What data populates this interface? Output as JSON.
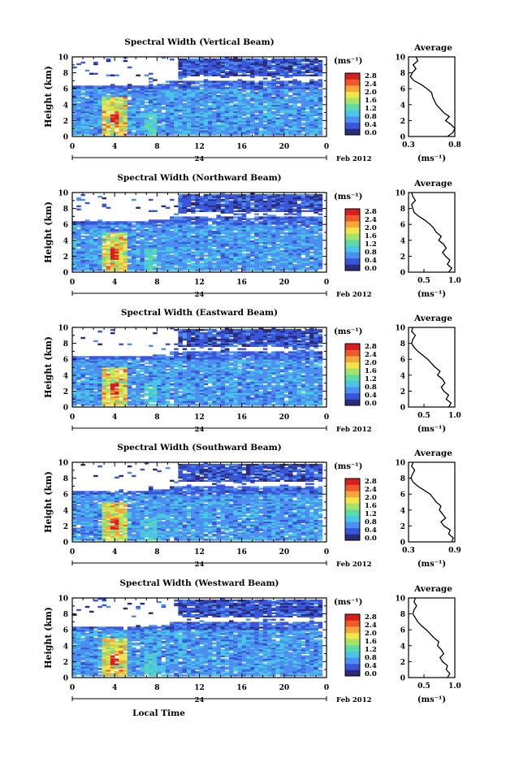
{
  "common": {
    "ylabel": "Height (km)",
    "unit_label": "(ms⁻¹)",
    "date_label": "Feb 2012",
    "day_label": "24",
    "xlabel": "Local Time",
    "avg_title": "Average",
    "avg_xlabel": "(ms⁻¹)",
    "x_ticks": [
      "0",
      "4",
      "8",
      "12",
      "16",
      "20",
      "0"
    ],
    "y_ticks": [
      "0",
      "2",
      "4",
      "6",
      "8",
      "10"
    ],
    "colorbar_ticks": [
      "0.0",
      "0.4",
      "0.8",
      "1.2",
      "1.6",
      "2.0",
      "2.4",
      "2.8"
    ],
    "colormap": [
      "#2b2b7a",
      "#3a56d8",
      "#4d8ff0",
      "#49c6e6",
      "#5ed9a8",
      "#a6e36a",
      "#f0e54a",
      "#f5a83a",
      "#ee5a2a",
      "#d62020"
    ]
  },
  "chart_data": [
    {
      "type": "heatmap",
      "title": "Spectral Width (Vertical Beam)",
      "xlabel": "",
      "ylabel": "Height (km)",
      "xlim": [
        0,
        24
      ],
      "ylim": [
        0,
        10
      ],
      "colorbar": {
        "label": "(ms⁻¹)",
        "range": [
          0.0,
          2.8
        ]
      },
      "top_km_noon": 9.7,
      "avg": {
        "title": "Average",
        "xlabel": "(ms⁻¹)",
        "xticks": [
          "0.3",
          "0.8"
        ],
        "xlim": [
          0.3,
          0.8
        ],
        "profile": [
          [
            0.0,
            0.72
          ],
          [
            0.5,
            0.78
          ],
          [
            1.0,
            0.8
          ],
          [
            1.5,
            0.76
          ],
          [
            2.0,
            0.7
          ],
          [
            2.5,
            0.74
          ],
          [
            3.0,
            0.68
          ],
          [
            3.5,
            0.64
          ],
          [
            4.0,
            0.6
          ],
          [
            4.5,
            0.58
          ],
          [
            5.0,
            0.56
          ],
          [
            5.5,
            0.55
          ],
          [
            6.0,
            0.5
          ],
          [
            6.5,
            0.44
          ],
          [
            7.0,
            0.36
          ],
          [
            7.5,
            0.32
          ],
          [
            8.0,
            0.34
          ],
          [
            8.5,
            0.38
          ],
          [
            9.0,
            0.35
          ],
          [
            9.5,
            0.4
          ],
          [
            10.0,
            0.38
          ]
        ]
      }
    },
    {
      "type": "heatmap",
      "title": "Spectral Width (Northward Beam)",
      "xlabel": "",
      "ylabel": "Height (km)",
      "xlim": [
        0,
        24
      ],
      "ylim": [
        0,
        10
      ],
      "colorbar": {
        "label": "(ms⁻¹)",
        "range": [
          0.0,
          2.8
        ]
      },
      "top_km_noon": 9.7,
      "avg": {
        "title": "Average",
        "xlabel": "(ms⁻¹)",
        "xticks": [
          "0.5",
          "1.0"
        ],
        "xlim": [
          0.25,
          1.0
        ],
        "profile": [
          [
            0.0,
            0.9
          ],
          [
            0.5,
            0.95
          ],
          [
            1.0,
            0.88
          ],
          [
            1.5,
            0.92
          ],
          [
            2.0,
            0.85
          ],
          [
            2.5,
            0.8
          ],
          [
            3.0,
            0.86
          ],
          [
            3.5,
            0.82
          ],
          [
            4.0,
            0.74
          ],
          [
            4.5,
            0.78
          ],
          [
            5.0,
            0.7
          ],
          [
            5.5,
            0.66
          ],
          [
            6.0,
            0.6
          ],
          [
            6.5,
            0.52
          ],
          [
            7.0,
            0.42
          ],
          [
            7.5,
            0.34
          ],
          [
            8.0,
            0.32
          ],
          [
            8.5,
            0.3
          ],
          [
            9.0,
            0.36
          ],
          [
            9.5,
            0.32
          ],
          [
            10.0,
            0.3
          ]
        ]
      }
    },
    {
      "type": "heatmap",
      "title": "Spectral Width (Eastward Beam)",
      "xlabel": "",
      "ylabel": "Height (km)",
      "xlim": [
        0,
        24
      ],
      "ylim": [
        0,
        10
      ],
      "colorbar": {
        "label": "(ms⁻¹)",
        "range": [
          0.0,
          2.8
        ]
      },
      "top_km_noon": 9.7,
      "avg": {
        "title": "Average",
        "xlabel": "(ms⁻¹)",
        "xticks": [
          "0.5",
          "1.0"
        ],
        "xlim": [
          0.25,
          1.0
        ],
        "profile": [
          [
            0.0,
            0.9
          ],
          [
            0.5,
            0.94
          ],
          [
            1.0,
            0.86
          ],
          [
            1.5,
            0.9
          ],
          [
            2.0,
            0.82
          ],
          [
            2.5,
            0.78
          ],
          [
            3.0,
            0.84
          ],
          [
            3.5,
            0.8
          ],
          [
            4.0,
            0.72
          ],
          [
            4.5,
            0.76
          ],
          [
            5.0,
            0.68
          ],
          [
            5.5,
            0.62
          ],
          [
            6.0,
            0.56
          ],
          [
            6.5,
            0.48
          ],
          [
            7.0,
            0.4
          ],
          [
            7.5,
            0.34
          ],
          [
            8.0,
            0.3
          ],
          [
            8.5,
            0.32
          ],
          [
            9.0,
            0.36
          ],
          [
            9.5,
            0.3
          ],
          [
            10.0,
            0.32
          ]
        ]
      }
    },
    {
      "type": "heatmap",
      "title": "Spectral Width (Southward Beam)",
      "xlabel": "",
      "ylabel": "Height (km)",
      "xlim": [
        0,
        24
      ],
      "ylim": [
        0,
        10
      ],
      "colorbar": {
        "label": "(ms⁻¹)",
        "range": [
          0.0,
          2.8
        ]
      },
      "top_km_noon": 9.7,
      "avg": {
        "title": "Average",
        "xlabel": "(ms⁻¹)",
        "xticks": [
          "0.3",
          "0.9"
        ],
        "xlim": [
          0.3,
          0.9
        ],
        "profile": [
          [
            0.0,
            0.86
          ],
          [
            0.5,
            0.88
          ],
          [
            1.0,
            0.82
          ],
          [
            1.5,
            0.84
          ],
          [
            2.0,
            0.76
          ],
          [
            2.5,
            0.72
          ],
          [
            3.0,
            0.78
          ],
          [
            3.5,
            0.74
          ],
          [
            4.0,
            0.7
          ],
          [
            4.5,
            0.72
          ],
          [
            5.0,
            0.66
          ],
          [
            5.5,
            0.62
          ],
          [
            6.0,
            0.58
          ],
          [
            6.5,
            0.5
          ],
          [
            7.0,
            0.42
          ],
          [
            7.5,
            0.36
          ],
          [
            8.0,
            0.33
          ],
          [
            8.5,
            0.35
          ],
          [
            9.0,
            0.38
          ],
          [
            9.5,
            0.34
          ],
          [
            10.0,
            0.36
          ]
        ]
      }
    },
    {
      "type": "heatmap",
      "title": "Spectral Width (Westward Beam)",
      "xlabel": "Local Time",
      "ylabel": "Height (km)",
      "xlim": [
        0,
        24
      ],
      "ylim": [
        0,
        10
      ],
      "colorbar": {
        "label": "(ms⁻¹)",
        "range": [
          0.0,
          2.8
        ]
      },
      "top_km_noon": 9.7,
      "avg": {
        "title": "Average",
        "xlabel": "(ms⁻¹)",
        "xticks": [
          "0.5",
          "1.0"
        ],
        "xlim": [
          0.25,
          1.0
        ],
        "profile": [
          [
            0.0,
            0.88
          ],
          [
            0.5,
            0.92
          ],
          [
            1.0,
            0.86
          ],
          [
            1.5,
            0.88
          ],
          [
            2.0,
            0.8
          ],
          [
            2.5,
            0.76
          ],
          [
            3.0,
            0.82
          ],
          [
            3.5,
            0.78
          ],
          [
            4.0,
            0.72
          ],
          [
            4.5,
            0.74
          ],
          [
            5.0,
            0.66
          ],
          [
            5.5,
            0.6
          ],
          [
            6.0,
            0.54
          ],
          [
            6.5,
            0.46
          ],
          [
            7.0,
            0.4
          ],
          [
            7.5,
            0.36
          ],
          [
            8.0,
            0.32
          ],
          [
            8.5,
            0.34
          ],
          [
            9.0,
            0.38
          ],
          [
            9.5,
            0.34
          ],
          [
            10.0,
            0.36
          ]
        ]
      }
    }
  ]
}
